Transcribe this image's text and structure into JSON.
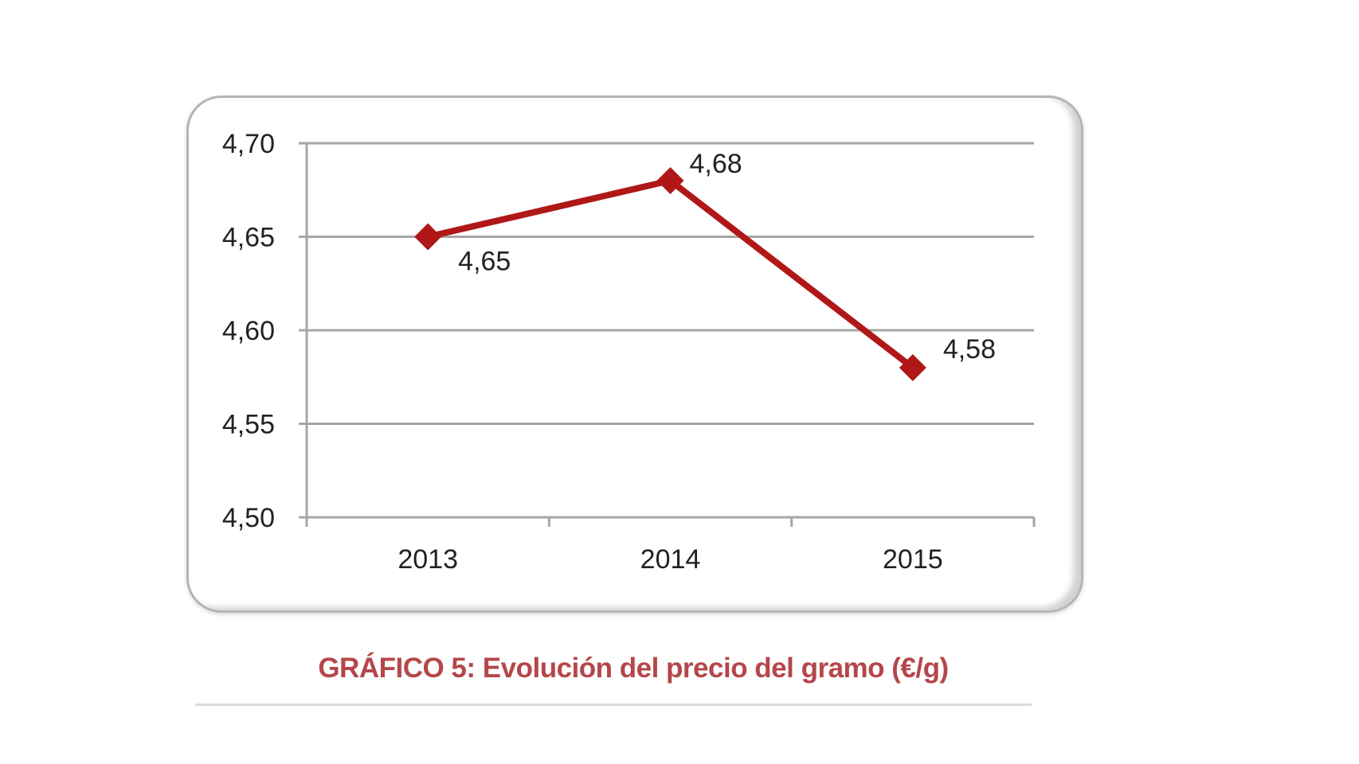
{
  "chart_data": {
    "type": "line",
    "title": "GRÁFICO 5: Evolución del precio del gramo (€/g)",
    "xlabel": "",
    "ylabel": "",
    "categories": [
      "2013",
      "2014",
      "2015"
    ],
    "series": [
      {
        "name": "Precio del gramo (€/g)",
        "values": [
          4.65,
          4.68,
          4.58
        ],
        "color": "#b01818"
      }
    ],
    "data_labels": [
      "4,65",
      "4,68",
      "4,58"
    ],
    "yticks": [
      "4,50",
      "4,55",
      "4,60",
      "4,65",
      "4,70"
    ],
    "ylim": [
      4.5,
      4.7
    ],
    "grid": true,
    "legend": "none"
  },
  "caption": "GRÁFICO 5: Evolución del precio del gramo (€/g)",
  "colors": {
    "line": "#b01818",
    "caption": "#b5464a",
    "grid": "#a6a6a6"
  }
}
